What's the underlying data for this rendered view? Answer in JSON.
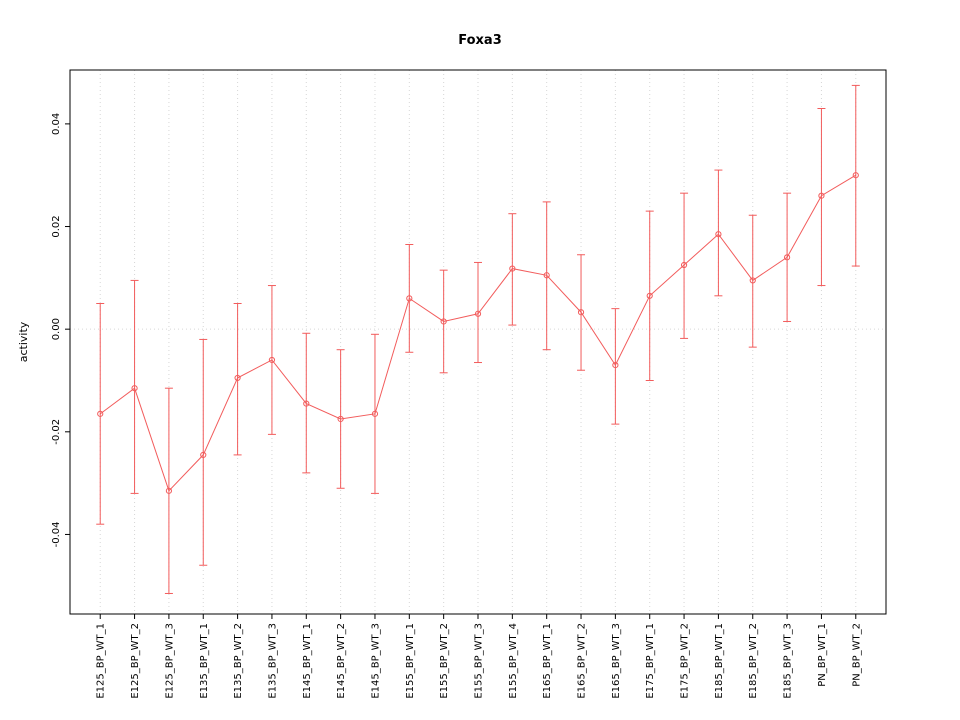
{
  "chart_data": {
    "type": "scatter",
    "title": "Foxa3",
    "ylabel": "activity",
    "xlabel": "",
    "ylim": [
      -0.0555,
      0.0505
    ],
    "yticks": [
      -0.04,
      -0.02,
      0.0,
      0.02,
      0.04
    ],
    "legend": "none",
    "grid": "dotted vertical gridline at each category; dotted horizontal line at y=0",
    "grid_color": "#d6d6d6",
    "point_color": "#f25c5c",
    "marker": "open-circle with error bars and connecting line",
    "categories": [
      "E125_BP_WT_1",
      "E125_BP_WT_2",
      "E125_BP_WT_3",
      "E135_BP_WT_1",
      "E135_BP_WT_2",
      "E135_BP_WT_3",
      "E145_BP_WT_1",
      "E145_BP_WT_2",
      "E145_BP_WT_3",
      "E155_BP_WT_1",
      "E155_BP_WT_2",
      "E155_BP_WT_3",
      "E155_BP_WT_4",
      "E165_BP_WT_1",
      "E165_BP_WT_2",
      "E165_BP_WT_3",
      "E175_BP_WT_1",
      "E175_BP_WT_2",
      "E185_BP_WT_1",
      "E185_BP_WT_2",
      "E185_BP_WT_3",
      "PN_BP_WT_1",
      "PN_BP_WT_2"
    ],
    "series": [
      {
        "name": "activity",
        "values": [
          -0.0165,
          -0.0115,
          -0.0315,
          -0.0245,
          -0.0095,
          -0.006,
          -0.0145,
          -0.0175,
          -0.0165,
          0.006,
          0.0015,
          0.003,
          0.0118,
          0.0105,
          0.0033,
          -0.007,
          0.0065,
          0.0125,
          0.0185,
          0.0095,
          0.014,
          0.026,
          0.03
        ],
        "upper": [
          0.005,
          0.0095,
          -0.0115,
          -0.002,
          0.005,
          0.0085,
          -0.0008,
          -0.004,
          -0.001,
          0.0165,
          0.0115,
          0.013,
          0.0225,
          0.0248,
          0.0145,
          0.004,
          0.023,
          0.0265,
          0.031,
          0.0222,
          0.0265,
          0.043,
          0.0475
        ],
        "lower": [
          -0.038,
          -0.032,
          -0.0515,
          -0.046,
          -0.0245,
          -0.0205,
          -0.028,
          -0.031,
          -0.032,
          -0.0045,
          -0.0085,
          -0.0065,
          0.0008,
          -0.004,
          -0.008,
          -0.0185,
          -0.01,
          -0.0018,
          0.0065,
          -0.0035,
          0.0015,
          0.0085,
          0.0123
        ]
      }
    ]
  }
}
